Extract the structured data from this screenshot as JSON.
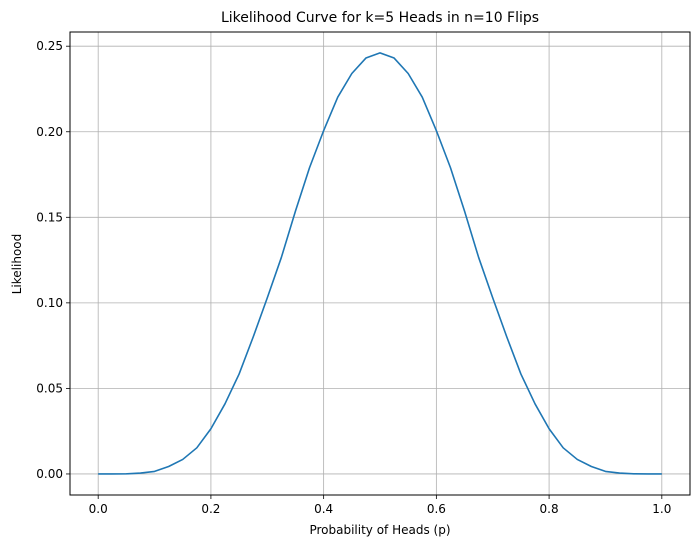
{
  "chart_data": {
    "type": "line",
    "title": "Likelihood Curve for k=5 Heads in n=10 Flips",
    "xlabel": "Probability of Heads (p)",
    "ylabel": "Likelihood",
    "xlim": [
      -0.05,
      1.05
    ],
    "ylim": [
      -0.0123,
      0.2583
    ],
    "x_ticks": [
      0.0,
      0.2,
      0.4,
      0.6,
      0.8,
      1.0
    ],
    "x_tick_labels": [
      "0.0",
      "0.2",
      "0.4",
      "0.6",
      "0.8",
      "1.0"
    ],
    "y_ticks": [
      0.0,
      0.05,
      0.1,
      0.15,
      0.2,
      0.25
    ],
    "y_tick_labels": [
      "0.00",
      "0.05",
      "0.10",
      "0.15",
      "0.20",
      "0.25"
    ],
    "grid": true,
    "legend": "none",
    "series": [
      {
        "color": "#1f77b4",
        "x": [
          0.0,
          0.025,
          0.05,
          0.075,
          0.1,
          0.125,
          0.15,
          0.175,
          0.2,
          0.225,
          0.25,
          0.275,
          0.3,
          0.325,
          0.35,
          0.375,
          0.4,
          0.425,
          0.45,
          0.475,
          0.5,
          0.525,
          0.55,
          0.575,
          0.6,
          0.625,
          0.65,
          0.675,
          0.7,
          0.725,
          0.75,
          0.775,
          0.8,
          0.825,
          0.85,
          0.875,
          0.9,
          0.925,
          0.95,
          0.975,
          1.0
        ],
        "y": [
          0.0,
          2e-06,
          7.4e-05,
          0.000527,
          0.001488,
          0.004346,
          0.008491,
          0.015283,
          0.026424,
          0.040993,
          0.058399,
          0.080035,
          0.102919,
          0.126533,
          0.153616,
          0.179032,
          0.200658,
          0.220201,
          0.234033,
          0.243085,
          0.246094,
          0.243085,
          0.234033,
          0.220201,
          0.200658,
          0.179032,
          0.153616,
          0.126533,
          0.102919,
          0.080035,
          0.058399,
          0.040993,
          0.026424,
          0.015283,
          0.008491,
          0.004346,
          0.001488,
          0.000527,
          7.4e-05,
          2e-06,
          0.0
        ]
      }
    ]
  }
}
